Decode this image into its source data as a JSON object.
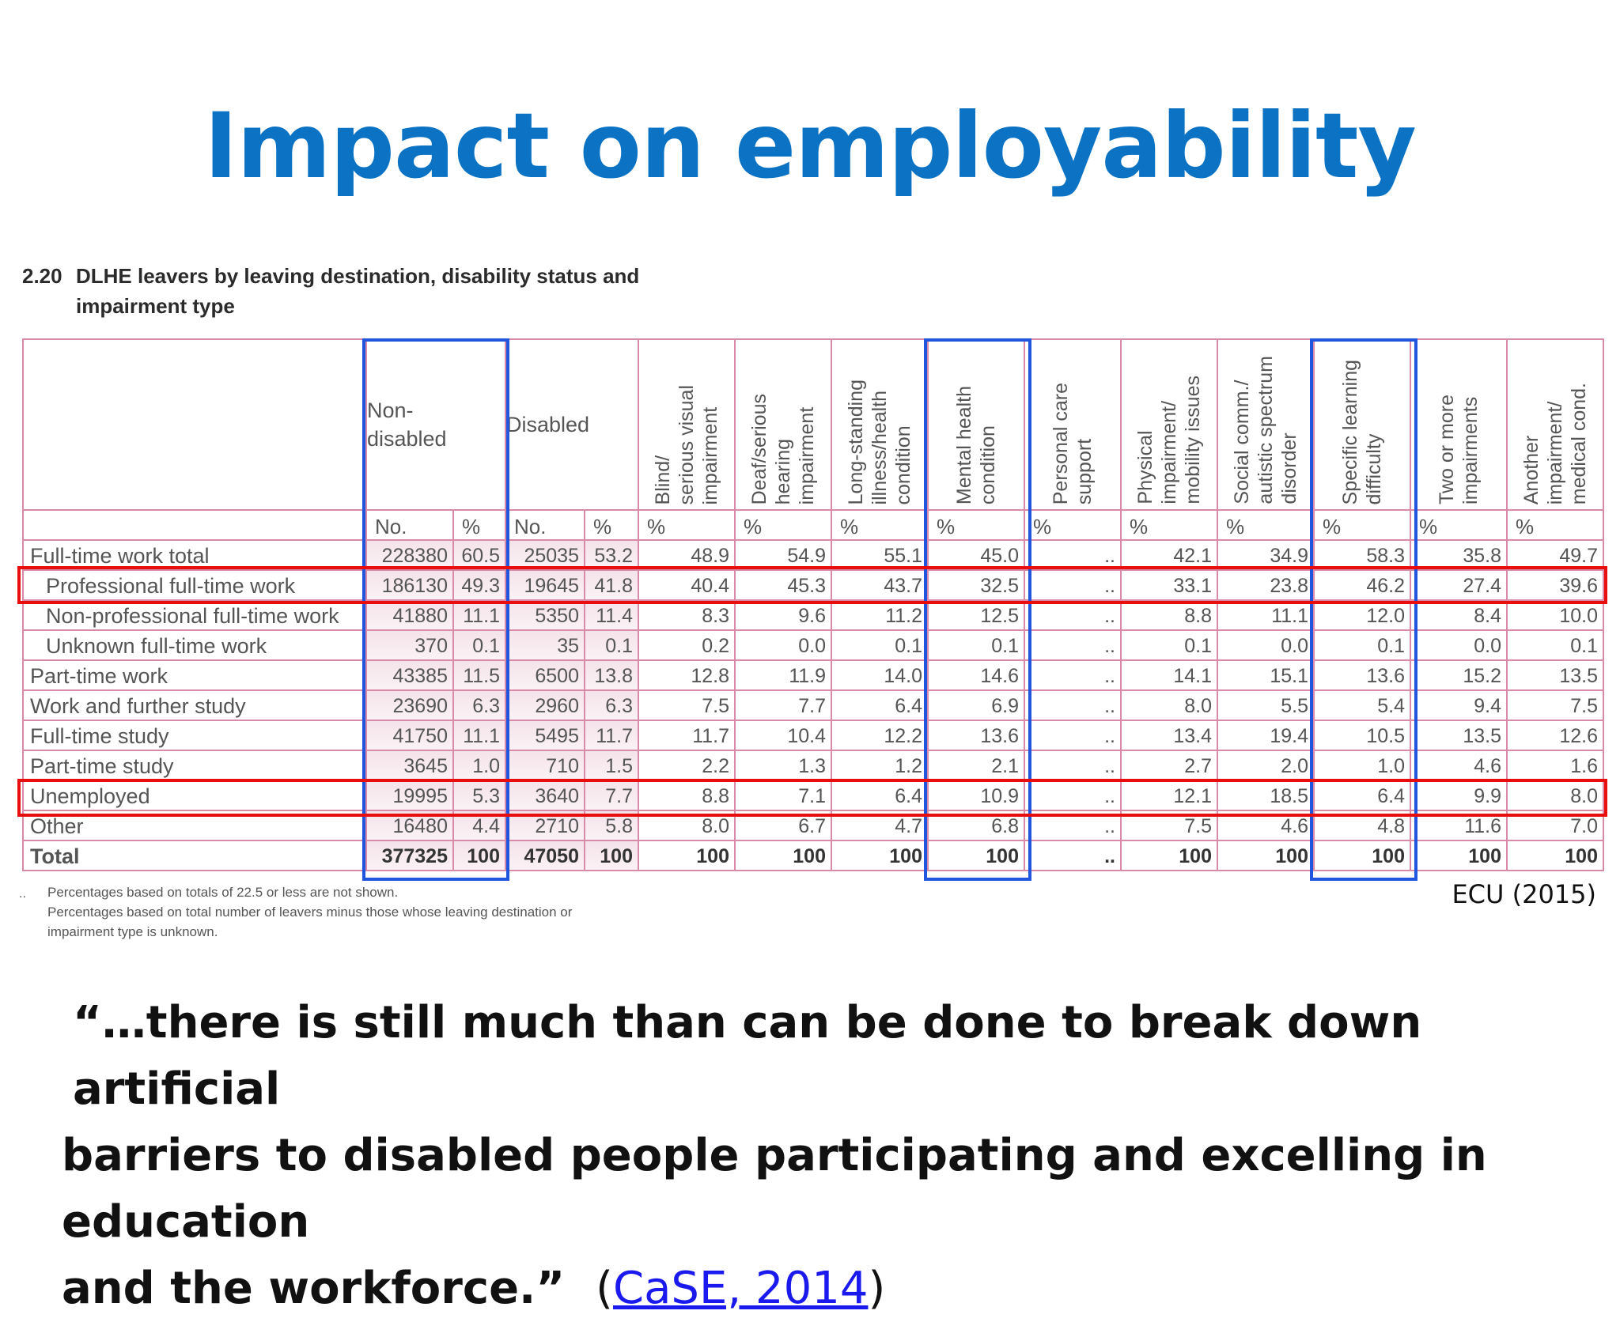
{
  "slide": {
    "title": "Impact on employability",
    "table_number": "2.20",
    "table_caption_line1": "DLHE leavers by leaving destination, disability status and",
    "table_caption_line2": "impairment type",
    "source": "ECU (2015)",
    "footnote_bullet": "..",
    "footnote_line1": "Percentages based on totals of 22.5 or less are not shown.",
    "footnote_line2": "Percentages based on total number of leavers minus those whose leaving destination or",
    "footnote_line3": "impairment type is unknown.",
    "quote_line1": "“…there is still much than can be done to break down artificial",
    "quote_line2": "barriers to disabled people participating and excelling in education",
    "quote_line3": "and the workforce.”",
    "ref_open": "(",
    "ref_link": "CaSE, 2014",
    "ref_close": ")"
  },
  "table": {
    "group_headers": [
      "Non-\ndisabled",
      "Disabled"
    ],
    "impairment_headers": [
      "Blind/\nserious visual\nimpairment",
      "Deaf/serious\nhearing\nimpairment",
      "Long-standing\nillness/health\ncondition",
      "Mental health\ncondition",
      "Personal care\nsupport",
      "Physical\nimpairment/\nmobility issues",
      "Social comm./\nautistic spectrum\ndisorder",
      "Specific learning\ndifficulty",
      "Two or more\nimpairments",
      "Another\nimpairment/\nmedical cond."
    ],
    "sub_headers": [
      "No.",
      "%",
      "No.",
      "%",
      "%",
      "%",
      "%",
      "%",
      "%",
      "%",
      "%",
      "%",
      "%",
      "%"
    ],
    "rows": [
      {
        "label": "Full-time work total",
        "indent": false,
        "cells": [
          "228380",
          "60.5",
          "25035",
          "53.2",
          "48.9",
          "54.9",
          "55.1",
          "45.0",
          "..",
          "42.1",
          "34.9",
          "58.3",
          "35.8",
          "49.7"
        ]
      },
      {
        "label": "Professional full-time work",
        "indent": true,
        "cells": [
          "186130",
          "49.3",
          "19645",
          "41.8",
          "40.4",
          "45.3",
          "43.7",
          "32.5",
          "..",
          "33.1",
          "23.8",
          "46.2",
          "27.4",
          "39.6"
        ]
      },
      {
        "label": "Non-professional full-time work",
        "indent": true,
        "cells": [
          "41880",
          "11.1",
          "5350",
          "11.4",
          "8.3",
          "9.6",
          "11.2",
          "12.5",
          "..",
          "8.8",
          "11.1",
          "12.0",
          "8.4",
          "10.0"
        ]
      },
      {
        "label": "Unknown full-time work",
        "indent": true,
        "cells": [
          "370",
          "0.1",
          "35",
          "0.1",
          "0.2",
          "0.0",
          "0.1",
          "0.1",
          "..",
          "0.1",
          "0.0",
          "0.1",
          "0.0",
          "0.1"
        ]
      },
      {
        "label": "Part-time work",
        "indent": false,
        "cells": [
          "43385",
          "11.5",
          "6500",
          "13.8",
          "12.8",
          "11.9",
          "14.0",
          "14.6",
          "..",
          "14.1",
          "15.1",
          "13.6",
          "15.2",
          "13.5"
        ]
      },
      {
        "label": "Work and further study",
        "indent": false,
        "cells": [
          "23690",
          "6.3",
          "2960",
          "6.3",
          "7.5",
          "7.7",
          "6.4",
          "6.9",
          "..",
          "8.0",
          "5.5",
          "5.4",
          "9.4",
          "7.5"
        ]
      },
      {
        "label": "Full-time study",
        "indent": false,
        "cells": [
          "41750",
          "11.1",
          "5495",
          "11.7",
          "11.7",
          "10.4",
          "12.2",
          "13.6",
          "..",
          "13.4",
          "19.4",
          "10.5",
          "13.5",
          "12.6"
        ]
      },
      {
        "label": "Part-time study",
        "indent": false,
        "cells": [
          "3645",
          "1.0",
          "710",
          "1.5",
          "2.2",
          "1.3",
          "1.2",
          "2.1",
          "..",
          "2.7",
          "2.0",
          "1.0",
          "4.6",
          "1.6"
        ]
      },
      {
        "label": "Unemployed",
        "indent": false,
        "cells": [
          "19995",
          "5.3",
          "3640",
          "7.7",
          "8.8",
          "7.1",
          "6.4",
          "10.9",
          "..",
          "12.1",
          "18.5",
          "6.4",
          "9.9",
          "8.0"
        ]
      },
      {
        "label": "Other",
        "indent": false,
        "cells": [
          "16480",
          "4.4",
          "2710",
          "5.8",
          "8.0",
          "6.7",
          "4.7",
          "6.8",
          "..",
          "7.5",
          "4.6",
          "4.8",
          "11.6",
          "7.0"
        ]
      },
      {
        "label": "Total",
        "indent": false,
        "cells": [
          "377325",
          "100",
          "47050",
          "100",
          "100",
          "100",
          "100",
          "100",
          "..",
          "100",
          "100",
          "100",
          "100",
          "100"
        ]
      }
    ]
  },
  "colors": {
    "title": "#0b72c4",
    "highlight_blue": "#2255dd",
    "highlight_red": "#e80e0e",
    "grid": "#d98aa8",
    "link": "#1a1aee"
  }
}
